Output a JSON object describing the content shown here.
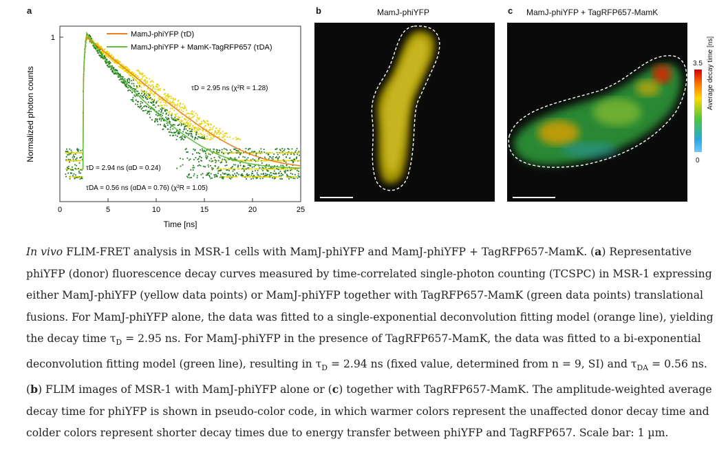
{
  "panels": {
    "a": {
      "letter": "a"
    },
    "b": {
      "letter": "b",
      "title": "MamJ-phiYFP"
    },
    "c": {
      "letter": "c",
      "title": "MamJ-phiYFP + TagRFP657-MamK"
    }
  },
  "chart_data": {
    "type": "scatter",
    "xlabel": "Time [ns]",
    "ylabel": "Normalized photon counts",
    "xlim": [
      0,
      25
    ],
    "ylim": [
      0,
      1
    ],
    "x_ticks": [
      0,
      5,
      10,
      15,
      20,
      25
    ],
    "y_ticks": [
      1
    ],
    "y_scale": "log",
    "legend_position": "top",
    "series": [
      {
        "name": "MamJ-phiYFP (τD)",
        "tau": 2.95,
        "color": "#e6d200",
        "fit_color": "#f07c1e"
      },
      {
        "name": "MamJ-phiYFP + MamK-TagRFP657 (τDA)",
        "tau": 0.56,
        "color": "#1f7a1f",
        "fit_color": "#5fbf3a"
      }
    ],
    "annotations": [
      "τD = 2.95 ns   (χ²R = 1.28)",
      "τD = 2.94 ns (αD = 0.24)",
      "τDA = 0.56 ns (αDA = 0.76)   (χ²R = 1.05)"
    ]
  },
  "colorbar": {
    "max": "3.5",
    "min": "0",
    "title": "Average decay time [ns]"
  },
  "caption": {
    "intro_italic": "In vivo",
    "p1": " FLIM-FRET analysis in MSR-1 cells with MamJ-phiYFP and MamJ-phiYFP + TagRFP657-MamK. (",
    "a_letter": "a",
    "p2": ") Representative phiYFP (donor) fluorescence decay curves measured by time-correlated single-photon counting (TCSPC) in MSR-1 expressing either MamJ-phiYFP (yellow data points) or MamJ-phiYFP together with TagRFP657-MamK (green data points) translational fusions. For MamJ-phiYFP alone, the data was fitted to a single-exponential deconvolution fitting model (orange line), yielding the decay time τ",
    "sub_d1": "D",
    "p3": " = 2.95 ns. For MamJ-phiYFP in the presence of TagRFP657-MamK, the data was fitted to a bi-exponential deconvolution fitting model (green line), resulting in τ",
    "sub_d2": "D",
    "p4": " = 2.94 ns (fixed value, determined from n = 9, SI) and τ",
    "sub_da": "DA",
    "p5": " = 0.56 ns. (",
    "b_letter": "b",
    "p6": ") FLIM images of MSR-1 with MamJ-phiYFP alone or (",
    "c_letter": "c",
    "p7": ") together with TagRFP657-MamK. The amplitude-weighted average decay time for phiYFP is shown in pseudo-color code, in which warmer colors represent the unaffected donor decay time and colder colors represent shorter decay times due to energy transfer between phiYFP and TagRFP657. Scale bar: 1 µm."
  }
}
